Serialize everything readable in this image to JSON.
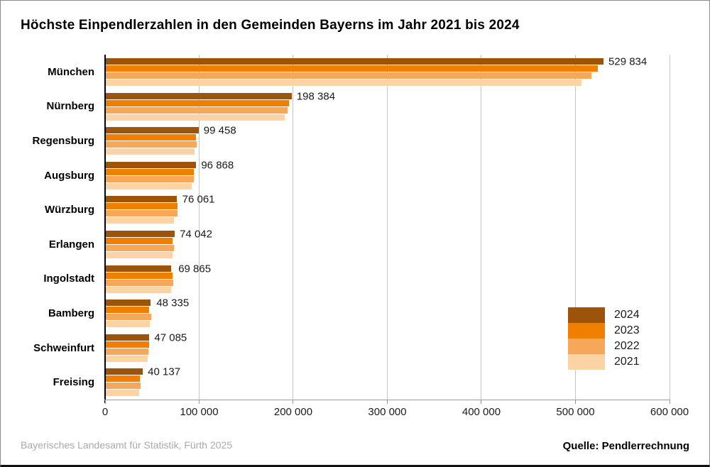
{
  "title": "Höchste Einpendlerzahlen in den Gemeinden Bayerns im Jahr 2021 bis 2024",
  "footer": {
    "left": "Bayerisches Landesamt für Statistik, Fürth 2025",
    "right": "Quelle: Pendlerrechnung"
  },
  "colors": {
    "grid": "#c6c6c6",
    "axis_y": "#000000",
    "axis_x": "#999999",
    "text": "#1a1a1a",
    "footer_left": "#a9a9a9"
  },
  "chart_data": {
    "type": "bar",
    "orientation": "horizontal",
    "title": "Höchste Einpendlerzahlen in den Gemeinden Bayerns im Jahr 2021 bis 2024",
    "categories": [
      "München",
      "Nürnberg",
      "Regensburg",
      "Augsburg",
      "Würzburg",
      "Erlangen",
      "Ingolstadt",
      "Bamberg",
      "Schweinfurt",
      "Freising"
    ],
    "series": [
      {
        "name": "2024",
        "color": "#9b540a",
        "values": [
          529834,
          198384,
          99458,
          96868,
          76061,
          74042,
          69865,
          48335,
          47085,
          40137
        ],
        "data_labels": [
          "529 834",
          "198 384",
          "99 458",
          "96 868",
          "76 061",
          "74 042",
          "69 865",
          "48 335",
          "47 085",
          "40 137"
        ]
      },
      {
        "name": "2023",
        "color": "#f07f00",
        "values": [
          523500,
          195500,
          96800,
          94300,
          76700,
          72000,
          71800,
          47000,
          47000,
          36800
        ]
      },
      {
        "name": "2022",
        "color": "#f6a75a",
        "values": [
          517000,
          194000,
          97400,
          94100,
          76700,
          73400,
          72600,
          49300,
          45800,
          37600
        ]
      },
      {
        "name": "2021",
        "color": "#fbd3a4",
        "values": [
          506600,
          191000,
          95300,
          92300,
          73400,
          71900,
          70300,
          47800,
          45000,
          35900
        ]
      }
    ],
    "xlim": [
      0,
      600000
    ],
    "xtick_values": [
      0,
      100000,
      200000,
      300000,
      400000,
      500000,
      600000
    ],
    "xtick_labels": [
      "0",
      "100 000",
      "200 000",
      "300 000",
      "400 000",
      "500 000",
      "600 000"
    ],
    "grid": "vertical",
    "legend_position": "inside-right",
    "legend": [
      "2024",
      "2023",
      "2022",
      "2021"
    ]
  }
}
